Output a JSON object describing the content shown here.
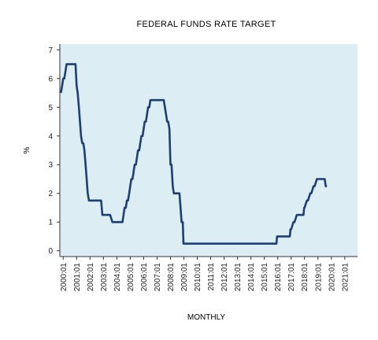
{
  "chart_data": {
    "type": "line",
    "title": "FEDERAL FUNDS RATE TARGET",
    "xlabel": "MONTHLY",
    "ylabel": "%",
    "ylim": [
      -0.2,
      7.2
    ],
    "xlim": [
      1999.75,
      2021.95
    ],
    "y_ticks": [
      0,
      1,
      2,
      3,
      4,
      5,
      6,
      7
    ],
    "x_ticks": [
      "2000:01",
      "2001:01",
      "2002:01",
      "2003:01",
      "2004:01",
      "2005:01",
      "2006:01",
      "2007:01",
      "2008:01",
      "2009:01",
      "2010:01",
      "2011:01",
      "2012:01",
      "2013:01",
      "2014:01",
      "2015:01",
      "2016:01",
      "2017:01",
      "2018:01",
      "2019:01",
      "2020:01",
      "2021:01"
    ],
    "grid": false,
    "plot_background": "#dcedf4",
    "line_color": "#1f3f73",
    "series": [
      {
        "x": [
          1999.83,
          1999.92,
          2000.0,
          2000.08,
          2000.17,
          2000.25,
          2000.33,
          2000.42,
          2000.5,
          2000.58,
          2000.67,
          2000.75,
          2000.83,
          2000.92,
          2001.0,
          2001.08,
          2001.17,
          2001.25,
          2001.33,
          2001.42,
          2001.5,
          2001.58,
          2001.67,
          2001.75,
          2001.83,
          2001.92,
          2002.0,
          2002.17,
          2002.33,
          2002.5,
          2002.67,
          2002.83,
          2002.92,
          2003.0,
          2003.25,
          2003.5,
          2003.67,
          2004.0,
          2004.25,
          2004.42,
          2004.5,
          2004.58,
          2004.67,
          2004.75,
          2004.83,
          2004.92,
          2005.0,
          2005.08,
          2005.17,
          2005.25,
          2005.33,
          2005.42,
          2005.5,
          2005.58,
          2005.67,
          2005.75,
          2005.83,
          2005.92,
          2006.0,
          2006.08,
          2006.17,
          2006.25,
          2006.33,
          2006.42,
          2006.5,
          2006.75,
          2007.0,
          2007.25,
          2007.5,
          2007.67,
          2007.75,
          2007.83,
          2007.92,
          2008.0,
          2008.08,
          2008.17,
          2008.25,
          2008.33,
          2008.5,
          2008.67,
          2008.75,
          2008.83,
          2008.92,
          2008.97,
          2009.0,
          2010.0,
          2011.0,
          2012.0,
          2013.0,
          2014.0,
          2015.0,
          2015.9,
          2015.95,
          2016.0,
          2016.5,
          2016.9,
          2016.95,
          2017.0,
          2017.17,
          2017.25,
          2017.42,
          2017.5,
          2017.92,
          2017.97,
          2018.0,
          2018.17,
          2018.25,
          2018.42,
          2018.5,
          2018.67,
          2018.75,
          2018.92,
          2019.0,
          2019.25,
          2019.5,
          2019.58,
          2019.67
        ],
        "y": [
          5.5,
          5.75,
          6.0,
          6.0,
          6.25,
          6.5,
          6.5,
          6.5,
          6.5,
          6.5,
          6.5,
          6.5,
          6.5,
          6.5,
          5.75,
          5.5,
          5.0,
          4.5,
          4.0,
          3.75,
          3.75,
          3.5,
          3.0,
          2.5,
          2.0,
          1.75,
          1.75,
          1.75,
          1.75,
          1.75,
          1.75,
          1.75,
          1.25,
          1.25,
          1.25,
          1.25,
          1.0,
          1.0,
          1.0,
          1.0,
          1.25,
          1.5,
          1.5,
          1.75,
          1.75,
          2.0,
          2.25,
          2.5,
          2.5,
          2.75,
          3.0,
          3.0,
          3.25,
          3.5,
          3.5,
          3.75,
          4.0,
          4.0,
          4.25,
          4.5,
          4.5,
          4.75,
          5.0,
          5.0,
          5.25,
          5.25,
          5.25,
          5.25,
          5.25,
          4.75,
          4.5,
          4.5,
          4.25,
          3.0,
          3.0,
          2.25,
          2.0,
          2.0,
          2.0,
          2.0,
          1.5,
          1.0,
          1.0,
          0.25,
          0.25,
          0.25,
          0.25,
          0.25,
          0.25,
          0.25,
          0.25,
          0.25,
          0.5,
          0.5,
          0.5,
          0.5,
          0.75,
          0.75,
          1.0,
          1.0,
          1.25,
          1.25,
          1.25,
          1.5,
          1.5,
          1.75,
          1.75,
          2.0,
          2.0,
          2.25,
          2.25,
          2.5,
          2.5,
          2.5,
          2.5,
          2.25,
          2.25
        ]
      }
    ]
  }
}
